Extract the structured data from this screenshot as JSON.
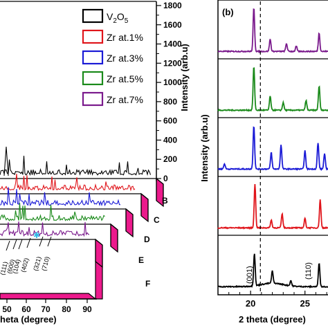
{
  "chart_data": [
    {
      "type": "line",
      "panel": "a",
      "ylabel": "Intensity (arb.u)",
      "xlabel": "heta (degree)",
      "xticks": [
        "50",
        "60",
        "70",
        "80",
        "90"
      ],
      "yticks": [
        0,
        200,
        400,
        600,
        800,
        1000,
        1200,
        1400,
        1600,
        1800
      ],
      "ylim": [
        0,
        1800
      ],
      "legend": [
        {
          "label": "V",
          "sub": "2",
          "label2": "O",
          "sub2": "5",
          "color": "#000000"
        },
        {
          "label": "Zr at.1%",
          "color": "#e0151b"
        },
        {
          "label": "Zr at.3%",
          "color": "#1a1ad6"
        },
        {
          "label": "Zr at.5%",
          "color": "#1a8a1a"
        },
        {
          "label": "Zr at.7%",
          "color": "#7a1a8c"
        }
      ],
      "depth_labels": [
        "B",
        "C",
        "D",
        "E",
        "F"
      ],
      "miller_labels": [
        "(111)",
        "(600)",
        "(104)",
        "(402)",
        "(321)",
        "(710)"
      ],
      "series": [
        {
          "name": "V2O5",
          "color": "#000000"
        },
        {
          "name": "Zr at.1%",
          "color": "#e0151b"
        },
        {
          "name": "Zr at.3%",
          "color": "#1a1ad6"
        },
        {
          "name": "Zr at.5%",
          "color": "#1a8a1a"
        },
        {
          "name": "Zr at.7%",
          "color": "#7a1a8c"
        }
      ]
    },
    {
      "type": "line",
      "panel": "b",
      "panel_label": "(b)",
      "ylabel": "Intensity (arb.u)",
      "xlabel": "2 theta (degree)",
      "x_tick_labels": [
        "20",
        "25"
      ],
      "xlim": [
        17,
        27.5
      ],
      "dashed_line_x": 20.9,
      "annotations": [
        "(001)",
        "(110)"
      ],
      "series": [
        {
          "name": "Zr at.7%",
          "color": "#7a1a8c",
          "peaks": [
            [
              20.3,
              1.0
            ],
            [
              21.8,
              0.28
            ],
            [
              23.3,
              0.18
            ],
            [
              24.2,
              0.12
            ],
            [
              26.3,
              0.42
            ]
          ]
        },
        {
          "name": "Zr at.5%",
          "color": "#1a8a1a",
          "peaks": [
            [
              20.3,
              1.0
            ],
            [
              21.8,
              0.32
            ],
            [
              23.0,
              0.18
            ],
            [
              25.1,
              0.22
            ],
            [
              26.3,
              0.55
            ]
          ]
        },
        {
          "name": "Zr at.3%",
          "color": "#1a1ad6",
          "peaks": [
            [
              17.6,
              0.12
            ],
            [
              20.3,
              1.0
            ],
            [
              21.9,
              0.38
            ],
            [
              22.8,
              0.55
            ],
            [
              25.0,
              0.42
            ],
            [
              26.2,
              0.6
            ],
            [
              26.8,
              0.35
            ]
          ]
        },
        {
          "name": "Zr at.1%",
          "color": "#e0151b",
          "peaks": [
            [
              20.4,
              1.0
            ],
            [
              21.9,
              0.18
            ],
            [
              22.9,
              0.32
            ],
            [
              25.0,
              0.22
            ],
            [
              26.4,
              0.65
            ]
          ]
        },
        {
          "name": "V2O5",
          "color": "#000000",
          "peaks": [
            [
              20.35,
              0.75
            ],
            [
              22.0,
              0.28
            ],
            [
              23.7,
              0.12
            ],
            [
              26.3,
              0.55
            ]
          ]
        }
      ]
    }
  ]
}
